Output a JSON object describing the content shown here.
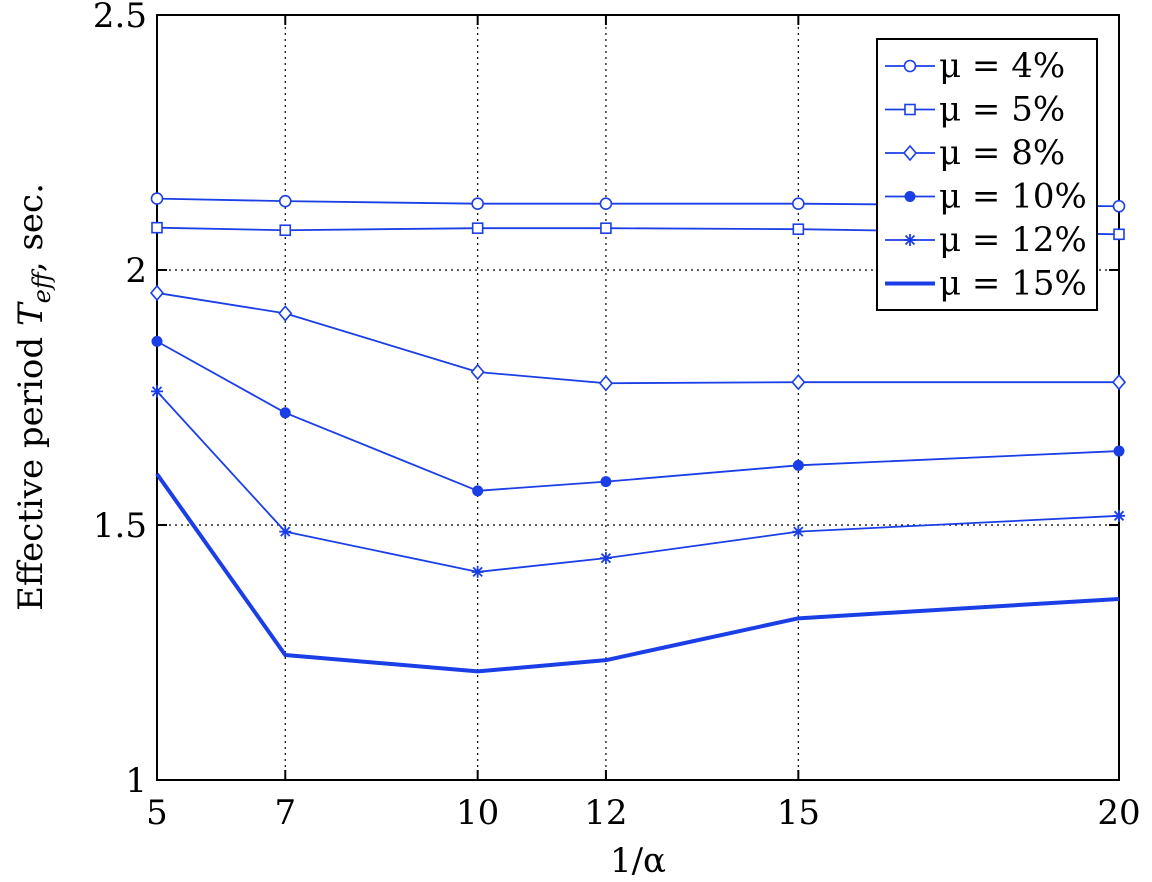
{
  "chart_data": {
    "type": "line",
    "title": "",
    "xlabel": "1/α",
    "ylabel": "Effective period T_eff, sec.",
    "ylabel_parts": {
      "prefix": "Effective period ",
      "symbol": "T",
      "subscript": "eff",
      "suffix": ", sec."
    },
    "x": [
      5,
      7,
      10,
      12,
      15,
      20
    ],
    "x_ticks": [
      "5",
      "7",
      "10",
      "12",
      "15",
      "20"
    ],
    "y_ticks": [
      "1",
      "1.5",
      "2",
      "2.5"
    ],
    "y_tick_values": [
      1,
      1.5,
      2,
      2.5
    ],
    "xlim": [
      5,
      20
    ],
    "ylim": [
      1,
      2.5
    ],
    "grid": true,
    "legend_position": "top-right",
    "line_color": "#1a3fe6",
    "series": [
      {
        "name": "μ = 4%",
        "marker": "circle",
        "values": [
          2.14,
          2.135,
          2.13,
          2.13,
          2.13,
          2.125
        ]
      },
      {
        "name": "μ = 5%",
        "marker": "square",
        "values": [
          2.083,
          2.078,
          2.082,
          2.082,
          2.08,
          2.07
        ]
      },
      {
        "name": "μ = 8%",
        "marker": "diamond",
        "values": [
          1.955,
          1.915,
          1.8,
          1.778,
          1.78,
          1.78
        ]
      },
      {
        "name": "μ = 10%",
        "marker": "dot",
        "values": [
          1.86,
          1.72,
          1.567,
          1.585,
          1.617,
          1.645
        ]
      },
      {
        "name": "μ = 12%",
        "marker": "star",
        "values": [
          1.762,
          1.487,
          1.408,
          1.435,
          1.487,
          1.518
        ]
      },
      {
        "name": "μ = 15%",
        "marker": "none",
        "values": [
          1.6,
          1.245,
          1.213,
          1.235,
          1.317,
          1.355
        ]
      }
    ]
  }
}
